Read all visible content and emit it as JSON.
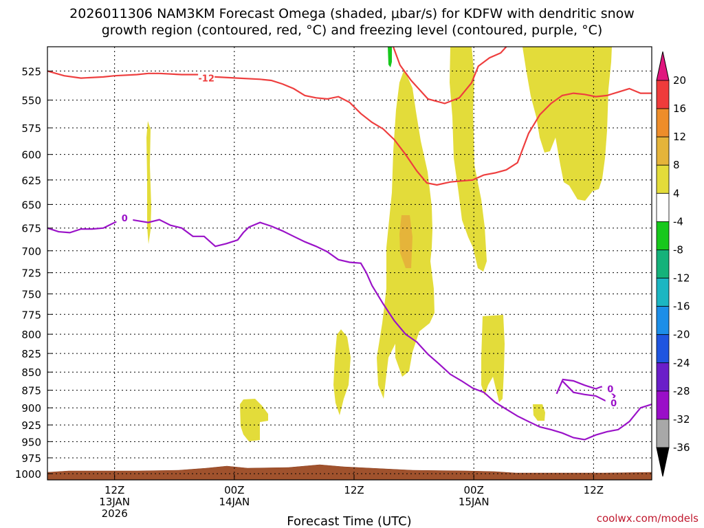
{
  "chart_data": {
    "type": "time-height cross section",
    "title_line1": "2026011306 NAM3KM Forecast Omega (shaded, μbar/s) for KDFW with dendritic snow",
    "title_line2": "growth region (contoured, red, °C) and freezing level (contoured, purple, °C)",
    "xlabel": "Forecast Time (UTC)",
    "credit": "coolwx.com/models",
    "x_unit": "forecast hour from 06Z 13JAN 2026",
    "xlim": [
      0,
      54
    ],
    "ylim_hPa": [
      1010,
      505
    ],
    "y_ticks": [
      "525",
      "550",
      "575",
      "600",
      "625",
      "650",
      "675",
      "700",
      "725",
      "750",
      "775",
      "800",
      "825",
      "850",
      "875",
      "900",
      "925",
      "950",
      "975",
      "1000"
    ],
    "x_ticks": [
      {
        "hour": 6,
        "line1": "12Z",
        "line2": "13JAN",
        "line3": "2026"
      },
      {
        "hour": 16.7,
        "line1": "00Z",
        "line2": "14JAN",
        "line3": ""
      },
      {
        "hour": 27.4,
        "line1": "12Z",
        "line2": "",
        "line3": ""
      },
      {
        "hour": 38.1,
        "line1": "00Z",
        "line2": "15JAN",
        "line3": ""
      },
      {
        "hour": 48.8,
        "line1": "12Z",
        "line2": "",
        "line3": ""
      }
    ],
    "colorbar": {
      "labels": [
        "20",
        "16",
        "12",
        "8",
        "4",
        "-4",
        "-8",
        "-12",
        "-16",
        "-20",
        "-24",
        "-28",
        "-32",
        "-36"
      ],
      "colors": [
        "#ef3b3b",
        "#ee8d2a",
        "#e5b43a",
        "#e3dc3a",
        "#ffffff",
        "#17c81c",
        "#15b27a",
        "#1bb6c2",
        "#1c8ee8",
        "#1f55e0",
        "#6a1ec9",
        "#9a0fc8",
        "#a8a8a8"
      ],
      "top_arrow_color": "#e0167e",
      "bottom_arrow_color": "#000000"
    },
    "contours": [
      {
        "name": "dendritic-minus12-contour",
        "label": "-12",
        "color": "#ee3e3e",
        "points": [
          [
            0,
            525
          ],
          [
            1.5,
            529
          ],
          [
            3,
            531
          ],
          [
            5,
            530
          ],
          [
            6,
            529
          ],
          [
            8,
            528
          ],
          [
            9,
            527
          ],
          [
            10,
            527
          ],
          [
            12,
            528
          ],
          [
            14,
            528
          ],
          [
            15,
            530
          ],
          [
            17,
            531
          ],
          [
            19,
            532
          ],
          [
            20,
            533
          ],
          [
            21,
            536
          ],
          [
            22,
            540
          ],
          [
            23,
            546
          ],
          [
            24,
            548
          ],
          [
            25,
            549
          ],
          [
            26,
            547
          ],
          [
            27,
            552
          ],
          [
            28,
            562
          ],
          [
            29,
            570
          ],
          [
            30,
            576
          ],
          [
            31,
            586
          ],
          [
            32,
            600
          ],
          [
            33,
            616
          ],
          [
            33.9,
            628
          ],
          [
            34.8,
            630
          ],
          [
            36,
            627
          ],
          [
            37,
            626
          ],
          [
            38,
            625
          ],
          [
            39,
            620
          ],
          [
            40,
            618
          ],
          [
            41,
            615
          ],
          [
            42,
            608
          ],
          [
            43,
            580
          ],
          [
            44,
            563
          ],
          [
            45,
            553
          ],
          [
            46,
            546
          ],
          [
            47,
            544
          ],
          [
            48,
            545
          ],
          [
            49,
            547
          ],
          [
            50,
            546
          ],
          [
            51,
            543
          ],
          [
            52,
            540
          ],
          [
            53,
            544
          ],
          [
            54,
            544
          ]
        ],
        "extra": [
          [
            30.9,
            505
          ],
          [
            31.5,
            520
          ],
          [
            32.5,
            533
          ],
          [
            34,
            549
          ],
          [
            35.5,
            553
          ],
          [
            36.8,
            548
          ],
          [
            37.9,
            535
          ],
          [
            38.5,
            521
          ],
          [
            39.5,
            514
          ],
          [
            40.5,
            510
          ],
          [
            41,
            505
          ]
        ]
      },
      {
        "name": "freezing-level-0-contour",
        "label": "0",
        "color": "#9a12c8",
        "points": [
          [
            0,
            675
          ],
          [
            1,
            679
          ],
          [
            2,
            680
          ],
          [
            3,
            676
          ],
          [
            4,
            676
          ],
          [
            5,
            675
          ],
          [
            6,
            669
          ],
          [
            7,
            665
          ],
          [
            8,
            667
          ],
          [
            9,
            669
          ],
          [
            10,
            666
          ],
          [
            11,
            672
          ],
          [
            12,
            675
          ],
          [
            13,
            684
          ],
          [
            14,
            684
          ],
          [
            15,
            695
          ],
          [
            16,
            692
          ],
          [
            17,
            688
          ],
          [
            17.5,
            680
          ],
          [
            18,
            674
          ],
          [
            19,
            669
          ],
          [
            20,
            673
          ],
          [
            21,
            678
          ],
          [
            22,
            684
          ],
          [
            23,
            690
          ],
          [
            24,
            695
          ],
          [
            25,
            701
          ],
          [
            26,
            710
          ],
          [
            27,
            713
          ],
          [
            28,
            714
          ],
          [
            28.5,
            725
          ],
          [
            29,
            740
          ],
          [
            30,
            762
          ],
          [
            31,
            783
          ],
          [
            32,
            800
          ],
          [
            33,
            810
          ],
          [
            34,
            826
          ],
          [
            35,
            839
          ],
          [
            36,
            853
          ],
          [
            37,
            862
          ],
          [
            38,
            872
          ],
          [
            39,
            878
          ],
          [
            40,
            892
          ],
          [
            41,
            902
          ],
          [
            42,
            912
          ],
          [
            43,
            920
          ],
          [
            44,
            928
          ],
          [
            45,
            932
          ],
          [
            46,
            937
          ],
          [
            47,
            944
          ],
          [
            48,
            947
          ],
          [
            49,
            940
          ],
          [
            50,
            935
          ],
          [
            51,
            932
          ],
          [
            52,
            920
          ],
          [
            53,
            900
          ],
          [
            54,
            895
          ]
        ],
        "extra": [
          [
            45.5,
            880
          ],
          [
            46,
            862
          ],
          [
            47,
            878
          ],
          [
            48,
            881
          ],
          [
            49,
            883
          ],
          [
            50,
            891
          ],
          [
            50.5,
            888
          ],
          [
            50.7,
            883
          ],
          [
            50.2,
            876
          ],
          [
            49.5,
            870
          ],
          [
            49,
            873
          ],
          [
            48,
            868
          ],
          [
            47,
            862
          ],
          [
            46,
            860
          ]
        ]
      }
    ],
    "shaded_regions": [
      {
        "name": "omega-4to8-region",
        "level": "4 to 8",
        "color": "#e3dc3a"
      },
      {
        "name": "omega-8to12-region",
        "level": "8 to 12",
        "color": "#e5b43a"
      },
      {
        "name": "omega-minus4-region",
        "level": "-4 to -8",
        "color": "#17c81c"
      }
    ],
    "terrain": {
      "name": "terrain-surface",
      "color": "#a0522d"
    }
  }
}
